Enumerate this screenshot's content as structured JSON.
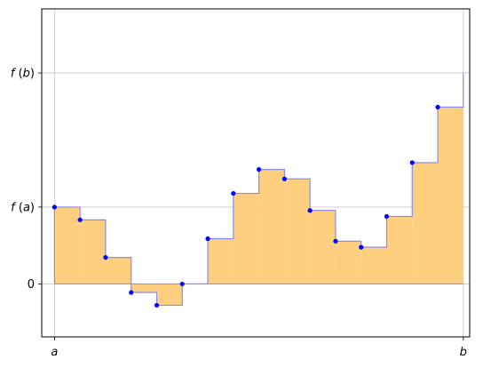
{
  "chart_data": {
    "type": "area",
    "chart_style": "left-endpoint Riemann sum (step area)",
    "title": "",
    "xlabel": "",
    "ylabel": "",
    "xlim": [
      -0.5,
      16.25
    ],
    "ylim": [
      -0.62,
      3.22
    ],
    "grid": true,
    "x_ticks": [
      {
        "value": 0,
        "label": "a"
      },
      {
        "value": 16,
        "label": "b"
      }
    ],
    "y_ticks": [
      {
        "value": 0,
        "label": "0"
      },
      {
        "value": 0.9,
        "label": "f (a)"
      },
      {
        "value": 2.47,
        "label": "f (b)"
      }
    ],
    "points": {
      "x": [
        0,
        1,
        2,
        3,
        4,
        5,
        6,
        7,
        8,
        9,
        10,
        11,
        12,
        13,
        14,
        15
      ],
      "y": [
        0.9,
        0.75,
        0.31,
        -0.1,
        -0.25,
        0.0,
        0.53,
        1.06,
        1.34,
        1.23,
        0.86,
        0.5,
        0.43,
        0.79,
        1.42,
        2.07
      ]
    },
    "step_width": 1,
    "end_x": 16,
    "end_y": 2.47,
    "colors": {
      "fill": "#ffcf80",
      "edge": "#8c8ce6",
      "point": "#0000ff",
      "grid": "#c8c8c8"
    }
  }
}
